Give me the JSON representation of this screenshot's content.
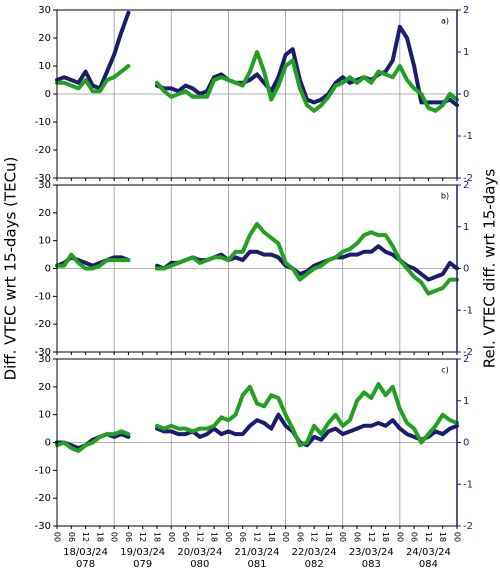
{
  "chart_data": [
    {
      "type": "line",
      "label": "a)",
      "x": [
        0,
        3,
        6,
        9,
        12,
        15,
        18,
        21,
        24,
        27,
        30,
        33,
        36,
        39,
        42,
        45,
        48,
        51,
        54,
        57,
        60,
        63,
        66,
        69,
        72,
        75,
        78,
        81,
        84,
        87,
        90,
        93,
        96,
        99,
        102,
        105,
        108,
        111,
        114,
        117,
        120,
        123,
        126,
        129,
        132,
        135,
        138,
        141,
        144,
        147,
        150,
        153,
        156,
        159,
        162,
        165,
        168
      ],
      "series": [
        {
          "color": "#1c1c6e",
          "values": [
            5,
            6,
            5,
            4,
            8,
            3,
            2,
            8,
            14,
            22,
            29,
            null,
            null,
            null,
            3,
            2,
            2,
            1,
            3,
            2,
            0,
            1,
            6,
            7,
            5,
            4,
            4,
            5,
            7,
            4,
            1,
            6,
            14,
            16,
            5,
            -2,
            -3,
            -2,
            0,
            4,
            6,
            4,
            5,
            6,
            5,
            7,
            8,
            12,
            24,
            20,
            10,
            -3,
            -3,
            -3,
            -3,
            -2,
            -4
          ]
        },
        {
          "color": "#22a022",
          "values": [
            4,
            4,
            3,
            2,
            5,
            1,
            1,
            5,
            6,
            8,
            10,
            null,
            null,
            null,
            4,
            1,
            -1,
            0,
            1,
            -1,
            -1,
            -1,
            5,
            6,
            5,
            4,
            3,
            8,
            15,
            8,
            -2,
            3,
            10,
            12,
            2,
            -4,
            -6,
            -4,
            -1,
            3,
            4,
            6,
            4,
            6,
            4,
            8,
            7,
            6,
            10,
            5,
            2,
            0,
            -5,
            -6,
            -4,
            0,
            -2
          ]
        }
      ],
      "xlim": [
        0,
        168
      ],
      "ylim": [
        -30,
        30
      ],
      "yticks": [
        -30,
        -20,
        -10,
        0,
        10,
        20,
        30
      ],
      "y2lim": [
        -2,
        2
      ],
      "y2ticks": [
        -2,
        -1,
        0,
        1,
        2
      ],
      "y2_color": "#1c1c6e",
      "grid": true
    },
    {
      "type": "line",
      "label": "b)",
      "x": [
        0,
        3,
        6,
        9,
        12,
        15,
        18,
        21,
        24,
        27,
        30,
        33,
        36,
        39,
        42,
        45,
        48,
        51,
        54,
        57,
        60,
        63,
        66,
        69,
        72,
        75,
        78,
        81,
        84,
        87,
        90,
        93,
        96,
        99,
        102,
        105,
        108,
        111,
        114,
        117,
        120,
        123,
        126,
        129,
        132,
        135,
        138,
        141,
        144,
        147,
        150,
        153,
        156,
        159,
        162,
        165,
        168
      ],
      "series": [
        {
          "color": "#1c1c6e",
          "values": [
            1,
            2,
            4,
            3,
            2,
            1,
            2,
            3,
            4,
            4,
            3,
            null,
            null,
            null,
            1,
            0,
            2,
            2,
            3,
            4,
            3,
            3,
            4,
            5,
            3,
            4,
            3,
            6,
            6,
            5,
            5,
            4,
            1,
            0,
            -2,
            -1,
            1,
            2,
            3,
            4,
            4,
            5,
            5,
            6,
            6,
            8,
            6,
            5,
            3,
            1,
            0,
            -2,
            -4,
            -3,
            -2,
            2,
            0
          ]
        },
        {
          "color": "#22a022",
          "values": [
            1,
            1,
            5,
            2,
            0,
            0,
            1,
            3,
            3,
            3,
            3,
            null,
            null,
            null,
            0,
            0,
            1,
            2,
            3,
            4,
            2,
            3,
            4,
            4,
            3,
            6,
            6,
            12,
            16,
            13,
            11,
            9,
            2,
            0,
            -4,
            -2,
            0,
            1,
            3,
            4,
            6,
            7,
            9,
            12,
            13,
            12,
            12,
            8,
            3,
            0,
            -3,
            -5,
            -9,
            -8,
            -7,
            -4,
            -4
          ]
        }
      ],
      "xlim": [
        0,
        168
      ],
      "ylim": [
        -30,
        30
      ],
      "yticks": [
        -30,
        -20,
        -10,
        0,
        10,
        20,
        30
      ],
      "y2lim": [
        -2,
        2
      ],
      "y2ticks": [
        -2,
        -1,
        0,
        1,
        2
      ],
      "y2_color": "#1c1c6e",
      "grid": true,
      "y_label": "Diff. VTEC wrt 15-days (TECu)",
      "y2_label": "Rel. VTEC diff. wrt 15-days"
    },
    {
      "type": "line",
      "label": "c)",
      "x": [
        0,
        3,
        6,
        9,
        12,
        15,
        18,
        21,
        24,
        27,
        30,
        33,
        36,
        39,
        42,
        45,
        48,
        51,
        54,
        57,
        60,
        63,
        66,
        69,
        72,
        75,
        78,
        81,
        84,
        87,
        90,
        93,
        96,
        99,
        102,
        105,
        108,
        111,
        114,
        117,
        120,
        123,
        126,
        129,
        132,
        135,
        138,
        141,
        144,
        147,
        150,
        153,
        156,
        159,
        162,
        165,
        168
      ],
      "series": [
        {
          "color": "#1c1c6e",
          "values": [
            0,
            0,
            -1,
            -2,
            -1,
            1,
            2,
            3,
            2,
            3,
            2,
            null,
            null,
            null,
            5,
            4,
            4,
            3,
            3,
            4,
            2,
            3,
            5,
            3,
            4,
            3,
            3,
            6,
            8,
            7,
            5,
            10,
            6,
            4,
            0,
            -1,
            2,
            1,
            4,
            5,
            3,
            4,
            5,
            6,
            6,
            7,
            6,
            8,
            5,
            3,
            2,
            1,
            2,
            4,
            3,
            5,
            6
          ]
        },
        {
          "color": "#22a022",
          "values": [
            -1,
            0,
            -2,
            -3,
            -1,
            0,
            2,
            3,
            3,
            4,
            3,
            null,
            null,
            null,
            6,
            5,
            6,
            5,
            5,
            4,
            5,
            5,
            6,
            9,
            8,
            10,
            17,
            20,
            14,
            13,
            17,
            16,
            10,
            5,
            -1,
            0,
            6,
            3,
            7,
            10,
            6,
            8,
            15,
            18,
            16,
            21,
            17,
            20,
            12,
            7,
            5,
            0,
            3,
            6,
            10,
            8,
            7
          ]
        }
      ],
      "xlim": [
        0,
        168
      ],
      "ylim": [
        -30,
        30
      ],
      "yticks": [
        -30,
        -20,
        -10,
        0,
        10,
        20,
        30
      ],
      "y2lim": [
        -2,
        2
      ],
      "y2ticks": [
        -2,
        -1,
        0,
        1,
        2
      ],
      "y2_color": "#1c1c6e",
      "grid": true,
      "xticks": [
        {
          "value": 0,
          "label": "00"
        },
        {
          "value": 6,
          "label": "06"
        },
        {
          "value": 12,
          "label": "12"
        },
        {
          "value": 18,
          "label": "18"
        },
        {
          "value": 24,
          "label": "00"
        },
        {
          "value": 30,
          "label": "06"
        },
        {
          "value": 36,
          "label": "12"
        },
        {
          "value": 42,
          "label": "18"
        },
        {
          "value": 48,
          "label": "00"
        },
        {
          "value": 54,
          "label": "06"
        },
        {
          "value": 60,
          "label": "12"
        },
        {
          "value": 66,
          "label": "18"
        },
        {
          "value": 72,
          "label": "00"
        },
        {
          "value": 78,
          "label": "06"
        },
        {
          "value": 84,
          "label": "12"
        },
        {
          "value": 90,
          "label": "18"
        },
        {
          "value": 96,
          "label": "00"
        },
        {
          "value": 102,
          "label": "06"
        },
        {
          "value": 108,
          "label": "12"
        },
        {
          "value": 114,
          "label": "18"
        },
        {
          "value": 120,
          "label": "00"
        },
        {
          "value": 126,
          "label": "06"
        },
        {
          "value": 132,
          "label": "12"
        },
        {
          "value": 138,
          "label": "18"
        },
        {
          "value": 144,
          "label": "00"
        },
        {
          "value": 150,
          "label": "06"
        },
        {
          "value": 156,
          "label": "12"
        },
        {
          "value": 162,
          "label": "18"
        },
        {
          "value": 168,
          "label": "00"
        }
      ],
      "day_labels": [
        {
          "date": "18/03/24",
          "doy": "078"
        },
        {
          "date": "19/03/24",
          "doy": "079"
        },
        {
          "date": "20/03/24",
          "doy": "080"
        },
        {
          "date": "21/03/24",
          "doy": "081"
        },
        {
          "date": "22/03/24",
          "doy": "082"
        },
        {
          "date": "23/03/24",
          "doy": "083"
        },
        {
          "date": "24/03/24",
          "doy": "084"
        }
      ]
    }
  ]
}
